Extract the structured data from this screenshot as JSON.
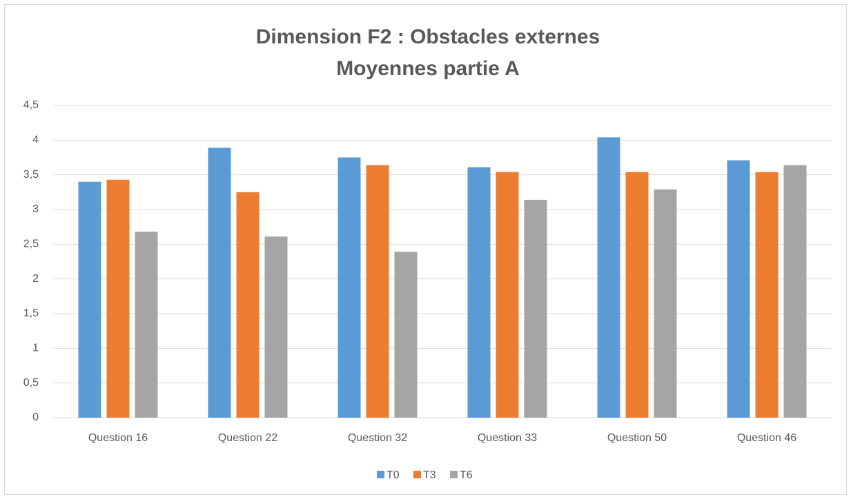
{
  "chart_data": {
    "type": "bar",
    "title": [
      "Dimension F2 : Obstacles externes",
      "Moyennes partie A"
    ],
    "categories": [
      "Question 16",
      "Question 22",
      "Question 32",
      "Question 33",
      "Question 50",
      "Question 46"
    ],
    "series": [
      {
        "name": "T0",
        "color": "#5b9bd5",
        "values": [
          3.4,
          3.89,
          3.75,
          3.61,
          4.04,
          3.71
        ]
      },
      {
        "name": "T3",
        "color": "#ed7d31",
        "values": [
          3.43,
          3.25,
          3.64,
          3.54,
          3.54,
          3.54
        ]
      },
      {
        "name": "T6",
        "color": "#a5a5a5",
        "values": [
          2.68,
          2.61,
          2.39,
          3.14,
          3.29,
          3.64
        ]
      }
    ],
    "ylim": [
      0,
      4.5
    ],
    "yticks": [
      0,
      {
        "value": 0.5,
        "label": "0,5"
      },
      1,
      {
        "value": 1.5,
        "label": "1,5"
      },
      2,
      {
        "value": 2.5,
        "label": "2,5"
      },
      3,
      {
        "value": 3.5,
        "label": "3,5"
      },
      4,
      {
        "value": 4.5,
        "label": "4,5"
      }
    ],
    "grid": true,
    "legend": "bottom"
  }
}
